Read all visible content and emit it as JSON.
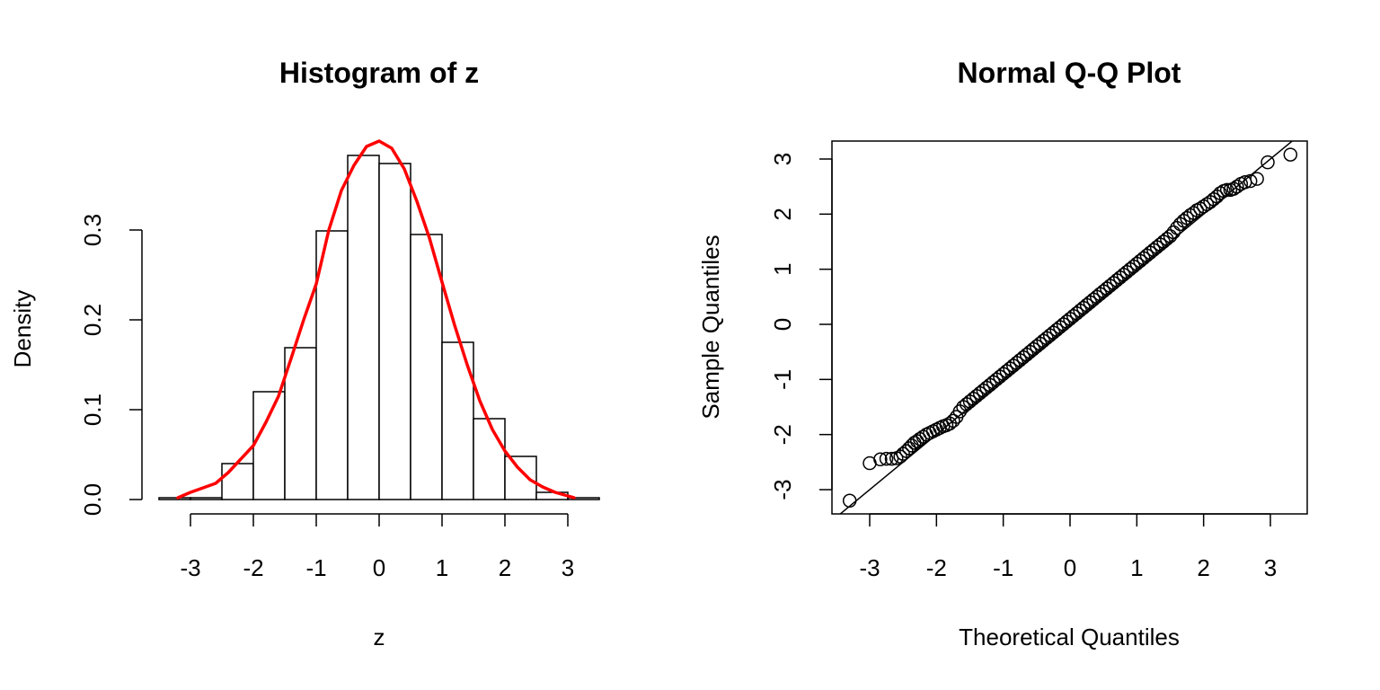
{
  "chart_data": [
    {
      "type": "bar",
      "subtype": "histogram",
      "title": "Histogram of z",
      "xlabel": "z",
      "ylabel": "Density",
      "xlim": [
        -3.5,
        3.5
      ],
      "ylim": [
        0,
        0.4
      ],
      "bin_edges": [
        -3.5,
        -3.0,
        -2.5,
        -2.0,
        -1.5,
        -1.0,
        -0.5,
        0.0,
        0.5,
        1.0,
        1.5,
        2.0,
        2.5,
        3.0,
        3.5
      ],
      "values": [
        0.002,
        0.002,
        0.04,
        0.12,
        0.169,
        0.299,
        0.383,
        0.374,
        0.295,
        0.175,
        0.09,
        0.048,
        0.008,
        0.002
      ],
      "x_ticks": [
        -3,
        -2,
        -1,
        0,
        1,
        2,
        3
      ],
      "x_tick_labels": [
        "-3",
        "-2",
        "-1",
        "0",
        "1",
        "2",
        "3"
      ],
      "y_ticks": [
        0.0,
        0.1,
        0.2,
        0.3
      ],
      "y_tick_labels": [
        "0.0",
        "0.1",
        "0.2",
        "0.3"
      ],
      "bar_fill": "#ffffff",
      "bar_stroke": "#000000",
      "density_curve": {
        "color": "#ff0000",
        "x": [
          -3.2,
          -3.0,
          -2.8,
          -2.6,
          -2.4,
          -2.2,
          -2.0,
          -1.8,
          -1.6,
          -1.4,
          -1.2,
          -1.0,
          -0.8,
          -0.6,
          -0.4,
          -0.2,
          0.0,
          0.2,
          0.4,
          0.6,
          0.8,
          1.0,
          1.2,
          1.4,
          1.6,
          1.8,
          2.0,
          2.2,
          2.4,
          2.6,
          2.8,
          3.0,
          3.1
        ],
        "y": [
          0.002,
          0.008,
          0.013,
          0.018,
          0.03,
          0.045,
          0.06,
          0.086,
          0.115,
          0.157,
          0.2,
          0.24,
          0.3,
          0.344,
          0.372,
          0.393,
          0.399,
          0.391,
          0.368,
          0.332,
          0.291,
          0.242,
          0.194,
          0.15,
          0.11,
          0.078,
          0.054,
          0.036,
          0.022,
          0.014,
          0.008,
          0.004,
          0.002
        ]
      }
    },
    {
      "type": "scatter",
      "subtype": "qq",
      "title": "Normal Q-Q Plot",
      "xlabel": "Theoretical Quantiles",
      "ylabel": "Sample Quantiles",
      "xlim": [
        -3.45,
        3.55
      ],
      "ylim": [
        -3.42,
        3.33
      ],
      "x_ticks": [
        -3,
        -2,
        -1,
        0,
        1,
        2,
        3
      ],
      "x_tick_labels": [
        "-3",
        "-2",
        "-1",
        "0",
        "1",
        "2",
        "3"
      ],
      "y_ticks": [
        -3,
        -2,
        -1,
        0,
        1,
        2,
        3
      ],
      "y_tick_labels": [
        "-3",
        "-2",
        "-1",
        "0",
        "1",
        "2",
        "3"
      ],
      "reference_line": {
        "intercept": 0.0,
        "slope": 1.0
      },
      "points": {
        "x": [
          -3.3,
          -3.0,
          -2.84,
          -2.75,
          -2.67,
          -2.6,
          -2.54,
          -2.5,
          -2.45,
          -2.41,
          -2.37,
          -2.33,
          -2.29,
          -2.25,
          -2.2,
          -2.15,
          -2.1,
          -2.05,
          -2.0,
          -1.95,
          -1.9,
          -1.85,
          -1.8,
          -1.75,
          -1.7,
          -1.65,
          -1.6,
          -1.55,
          -1.5,
          -1.45,
          -1.4,
          -1.35,
          -1.3,
          -1.25,
          -1.2,
          -1.15,
          -1.1,
          -1.05,
          -1.0,
          -0.95,
          -0.9,
          -0.85,
          -0.8,
          -0.75,
          -0.7,
          -0.65,
          -0.6,
          -0.55,
          -0.5,
          -0.45,
          -0.4,
          -0.35,
          -0.3,
          -0.25,
          -0.2,
          -0.15,
          -0.1,
          -0.05,
          0.0,
          0.05,
          0.1,
          0.15,
          0.2,
          0.25,
          0.3,
          0.35,
          0.4,
          0.45,
          0.5,
          0.55,
          0.6,
          0.65,
          0.7,
          0.75,
          0.8,
          0.85,
          0.9,
          0.95,
          1.0,
          1.05,
          1.1,
          1.15,
          1.2,
          1.25,
          1.3,
          1.35,
          1.4,
          1.45,
          1.5,
          1.55,
          1.6,
          1.65,
          1.7,
          1.75,
          1.8,
          1.85,
          1.9,
          1.95,
          2.0,
          2.05,
          2.1,
          2.15,
          2.2,
          2.25,
          2.3,
          2.35,
          2.4,
          2.45,
          2.5,
          2.56,
          2.62,
          2.7,
          2.8,
          2.96,
          3.3
        ],
        "y": [
          -3.2,
          -2.52,
          -2.45,
          -2.44,
          -2.44,
          -2.43,
          -2.4,
          -2.35,
          -2.3,
          -2.25,
          -2.2,
          -2.15,
          -2.12,
          -2.08,
          -2.04,
          -2.0,
          -1.97,
          -1.94,
          -1.91,
          -1.88,
          -1.85,
          -1.83,
          -1.8,
          -1.75,
          -1.68,
          -1.58,
          -1.5,
          -1.45,
          -1.4,
          -1.35,
          -1.3,
          -1.25,
          -1.2,
          -1.15,
          -1.1,
          -1.05,
          -1.0,
          -0.95,
          -0.9,
          -0.85,
          -0.8,
          -0.75,
          -0.7,
          -0.65,
          -0.6,
          -0.55,
          -0.5,
          -0.45,
          -0.4,
          -0.35,
          -0.3,
          -0.25,
          -0.2,
          -0.15,
          -0.1,
          -0.05,
          0.0,
          0.05,
          0.1,
          0.15,
          0.2,
          0.25,
          0.3,
          0.35,
          0.4,
          0.45,
          0.5,
          0.55,
          0.6,
          0.65,
          0.7,
          0.75,
          0.8,
          0.85,
          0.9,
          0.95,
          1.0,
          1.05,
          1.1,
          1.15,
          1.2,
          1.25,
          1.3,
          1.35,
          1.4,
          1.45,
          1.5,
          1.55,
          1.6,
          1.67,
          1.75,
          1.82,
          1.88,
          1.93,
          1.98,
          2.02,
          2.07,
          2.1,
          2.14,
          2.18,
          2.22,
          2.27,
          2.32,
          2.38,
          2.42,
          2.44,
          2.44,
          2.46,
          2.5,
          2.55,
          2.58,
          2.6,
          2.64,
          2.94,
          3.08
        ]
      }
    }
  ]
}
